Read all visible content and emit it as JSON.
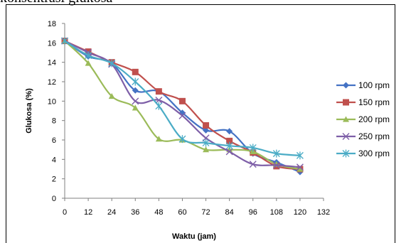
{
  "caption": "konsentrasi glukosa",
  "chart_data": {
    "type": "line",
    "xlabel": "Waktu (jam)",
    "ylabel": "Glukosa (%)",
    "xlim": [
      0,
      132
    ],
    "ylim": [
      0,
      18
    ],
    "xticks": [
      0,
      12,
      24,
      36,
      48,
      60,
      72,
      84,
      96,
      108,
      120,
      132
    ],
    "yticks": [
      0,
      2,
      4,
      6,
      8,
      10,
      12,
      14,
      16,
      18
    ],
    "x": [
      0,
      12,
      24,
      36,
      48,
      60,
      72,
      84,
      96,
      108,
      120
    ],
    "legend_position": "right",
    "grid": false,
    "series": [
      {
        "name": "100 rpm",
        "color": "#4472C4",
        "marker": "diamond",
        "values": [
          16.2,
          14.6,
          13.9,
          11.1,
          11.0,
          8.8,
          7.0,
          6.9,
          4.6,
          3.7,
          2.7
        ]
      },
      {
        "name": "150 rpm",
        "color": "#C0504D",
        "marker": "square",
        "values": [
          16.2,
          15.1,
          14.0,
          13.0,
          11.0,
          10.0,
          7.5,
          5.9,
          4.7,
          3.3,
          3.0
        ]
      },
      {
        "name": "200 rpm",
        "color": "#9BBB59",
        "marker": "triangle",
        "values": [
          16.2,
          13.9,
          10.5,
          9.3,
          6.1,
          6.0,
          5.0,
          5.0,
          4.8,
          3.5,
          3.0
        ]
      },
      {
        "name": "250 rpm",
        "color": "#7E5FA8",
        "marker": "x",
        "values": [
          16.2,
          15.0,
          13.8,
          10.0,
          10.1,
          8.5,
          6.2,
          4.8,
          3.5,
          3.4,
          3.2
        ]
      },
      {
        "name": "300 rpm",
        "color": "#4BACC6",
        "marker": "star",
        "values": [
          16.2,
          14.7,
          13.9,
          12.0,
          9.5,
          6.1,
          5.7,
          5.4,
          5.2,
          4.6,
          4.4
        ]
      }
    ]
  }
}
